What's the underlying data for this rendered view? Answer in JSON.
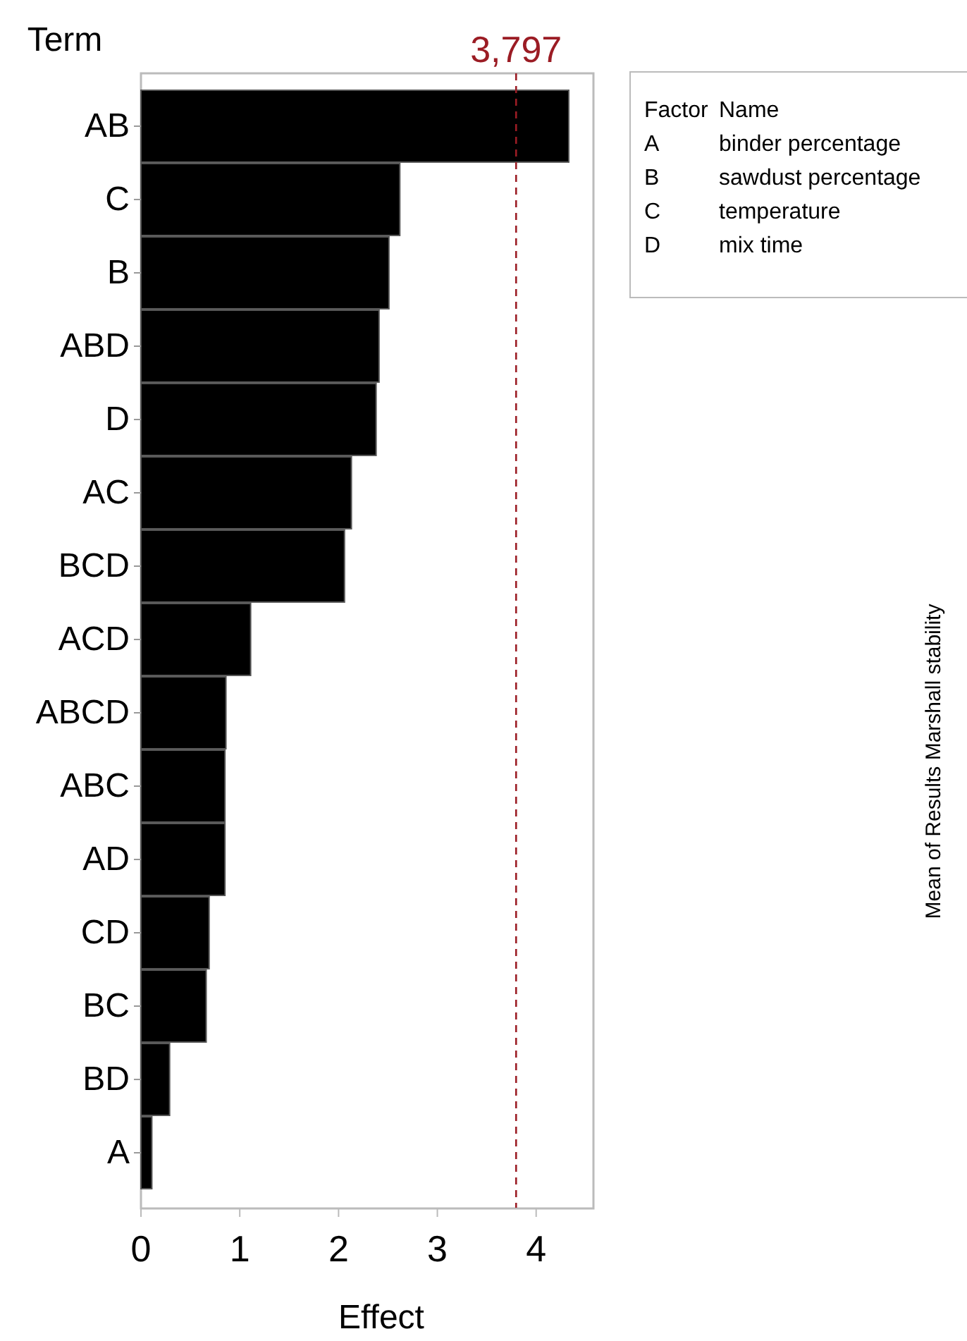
{
  "chart_data": {
    "type": "bar",
    "orientation": "horizontal",
    "ylabel": "Term",
    "xlabel": "Effect",
    "categories": [
      "AB",
      "C",
      "B",
      "ABD",
      "D",
      "AC",
      "BCD",
      "ACD",
      "ABCD",
      "ABC",
      "AD",
      "CD",
      "BC",
      "BD",
      "A"
    ],
    "values": [
      4.33,
      2.62,
      2.51,
      2.41,
      2.38,
      2.13,
      2.06,
      1.11,
      0.86,
      0.85,
      0.85,
      0.69,
      0.66,
      0.29,
      0.11
    ],
    "color": "#000000",
    "xlim": [
      0,
      4.58
    ],
    "xticks": [
      0,
      1,
      2,
      3,
      4
    ],
    "ref_lines": [
      {
        "axis": "x",
        "value": 3.797,
        "label": "3,797",
        "color": "#9b1c24",
        "line_style": "dashed"
      }
    ],
    "grid": false,
    "annotations": [
      "Factor",
      "Name",
      "A",
      "binder percentage",
      "B",
      "sawdust percentage",
      "C",
      "temperature",
      "D",
      "mix time",
      "Mean of Results Marshall stability"
    ]
  }
}
